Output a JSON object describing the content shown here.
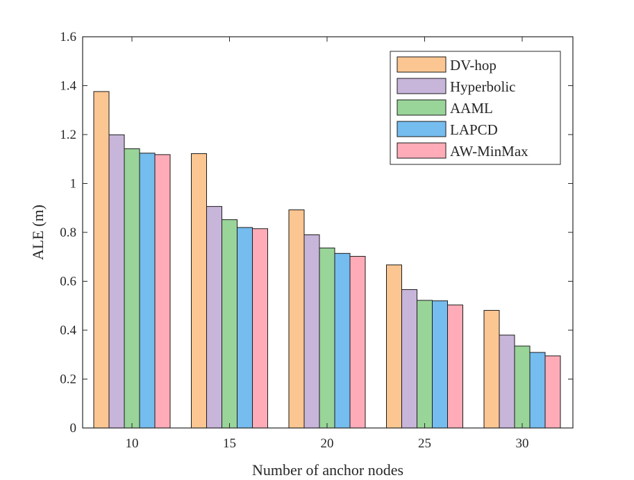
{
  "chart_data": {
    "type": "bar",
    "title": "",
    "xlabel": "Number of anchor nodes",
    "ylabel": "ALE (m)",
    "categories": [
      "10",
      "15",
      "20",
      "25",
      "30"
    ],
    "ylim": [
      0,
      1.6
    ],
    "yticks": [
      "0",
      "0.2",
      "0.4",
      "0.6",
      "0.8",
      "1",
      "1.2",
      "1.4",
      "1.6"
    ],
    "ytick_values": [
      0,
      0.2,
      0.4,
      0.6,
      0.8,
      1.0,
      1.2,
      1.4,
      1.6
    ],
    "grid": false,
    "legend_position": "top-right",
    "series": [
      {
        "name": "DV-hop",
        "color": "#FBC691",
        "values": [
          1.376,
          1.122,
          0.892,
          0.667,
          0.481
        ]
      },
      {
        "name": "Hyperbolic",
        "color": "#C8B5DA",
        "values": [
          1.199,
          0.906,
          0.79,
          0.566,
          0.38
        ]
      },
      {
        "name": "AAML",
        "color": "#99D499",
        "values": [
          1.142,
          0.852,
          0.736,
          0.522,
          0.335
        ]
      },
      {
        "name": "LAPCD",
        "color": "#75BCEF",
        "values": [
          1.124,
          0.82,
          0.714,
          0.52,
          0.309
        ]
      },
      {
        "name": "AW-MinMax",
        "color": "#FFACB8",
        "values": [
          1.118,
          0.815,
          0.702,
          0.503,
          0.295
        ]
      }
    ]
  }
}
